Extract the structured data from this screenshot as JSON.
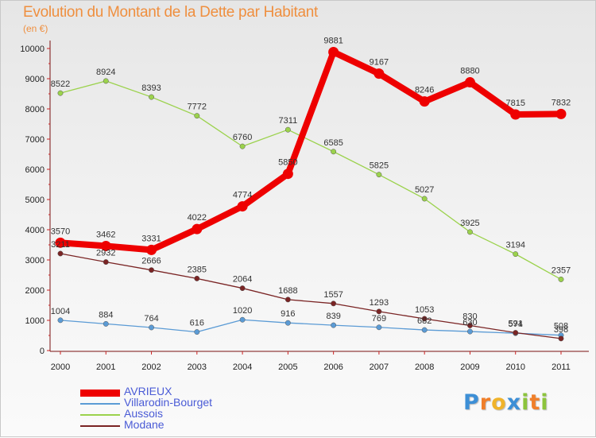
{
  "header": {
    "title": "Evolution du Montant de la Dette par Habitant",
    "subtitle": "(en €)"
  },
  "brand": {
    "text": "Proxiti",
    "letters": [
      {
        "ch": "P",
        "color": "#3d8fd6"
      },
      {
        "ch": "r",
        "color": "#f07f2a"
      },
      {
        "ch": "o",
        "color": "#f0b32a"
      },
      {
        "ch": "x",
        "color": "#3d8fd6"
      },
      {
        "ch": "i",
        "color": "#8cc43c"
      },
      {
        "ch": "t",
        "color": "#f07f2a"
      },
      {
        "ch": "i",
        "color": "#8cc43c"
      }
    ]
  },
  "chart_data": {
    "type": "line",
    "title": "Evolution du Montant de la Dette par Habitant",
    "subtitle": "(en €)",
    "xlabel": "",
    "ylabel": "",
    "x": [
      "2000",
      "2001",
      "2002",
      "2003",
      "2004",
      "2005",
      "2006",
      "2007",
      "2008",
      "2009",
      "2010",
      "2011"
    ],
    "ylim": [
      0,
      10000
    ],
    "yticks": [
      "0",
      "1000",
      "2000",
      "3000",
      "4000",
      "5000",
      "6000",
      "7000",
      "8000",
      "9000",
      "10000"
    ],
    "grid": false,
    "legend_position": "bottom-left",
    "series": [
      {
        "name": "AVRIEUX",
        "color": "#ee0000",
        "emphasis": true,
        "values": [
          3570,
          3462,
          3331,
          4022,
          4774,
          5850,
          9881,
          9167,
          8246,
          8880,
          7815,
          7832
        ],
        "labels": [
          "3570",
          "3462",
          "3331",
          "4022",
          "4774",
          "5850",
          "9881",
          "9167",
          "8246",
          "8880",
          "7815",
          "7832"
        ]
      },
      {
        "name": "Villarodin-Bourget",
        "color": "#5b9bd5",
        "emphasis": false,
        "values": [
          1004,
          884,
          764,
          616,
          1020,
          916,
          839,
          769,
          682,
          630,
          574,
          508
        ],
        "labels": [
          "1004",
          "884",
          "764",
          "616",
          "1020",
          "916",
          "839",
          "769",
          "682",
          "630",
          "574",
          "508"
        ]
      },
      {
        "name": "Aussois",
        "color": "#9bd24c",
        "emphasis": false,
        "values": [
          8522,
          8924,
          8393,
          7772,
          6760,
          7311,
          6585,
          5825,
          5027,
          3925,
          3194,
          2357
        ],
        "labels": [
          "8522",
          "8924",
          "8393",
          "7772",
          "6760",
          "7311",
          "6585",
          "5825",
          "5027",
          "3925",
          "3194",
          "2357"
        ]
      },
      {
        "name": "Modane",
        "color": "#7a2424",
        "emphasis": false,
        "values": [
          3211,
          2932,
          2666,
          2385,
          2064,
          1688,
          1557,
          1293,
          1053,
          830,
          591,
          398
        ],
        "labels": [
          "3211",
          "2932",
          "2666",
          "2385",
          "2064",
          "1688",
          "1557",
          "1293",
          "1053",
          "830",
          "591",
          "398"
        ]
      }
    ]
  }
}
